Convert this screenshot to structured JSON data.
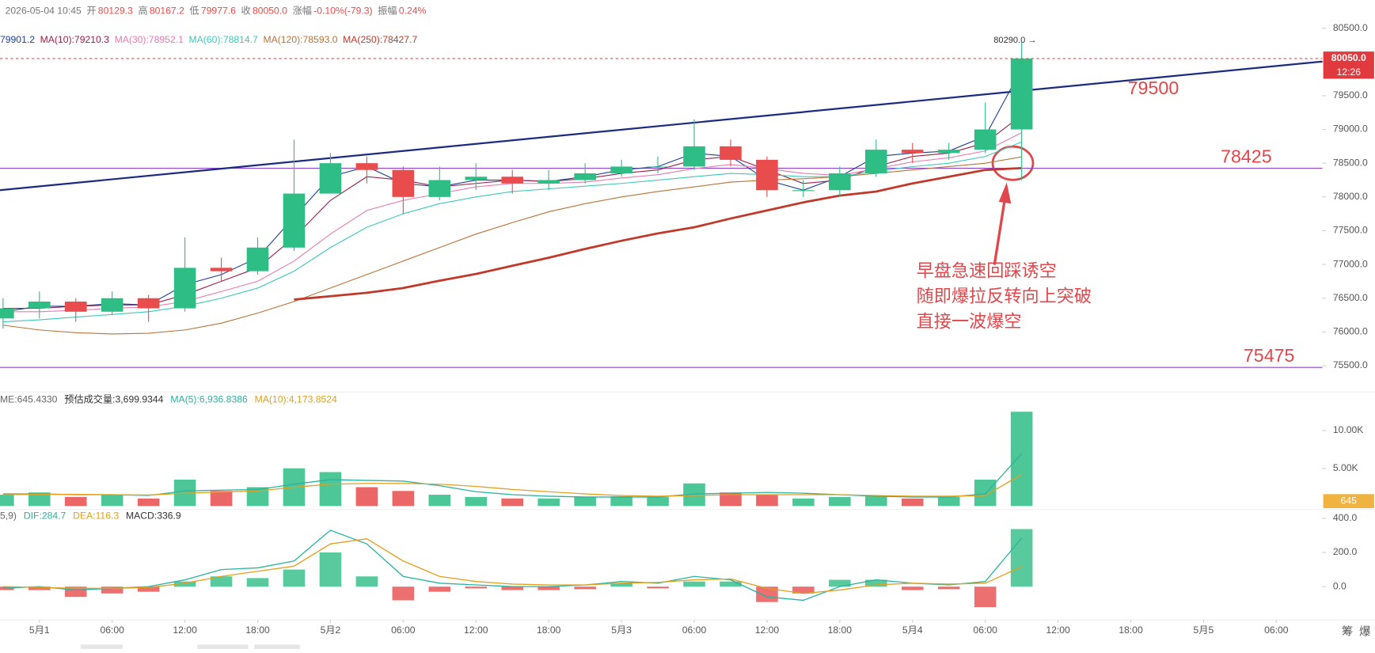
{
  "chart_data": [
    {
      "type": "candlestick",
      "info": {
        "time": "2026-05-04 10:45",
        "items": [
          {
            "label": "开",
            "value": "80129.3"
          },
          {
            "label": "高",
            "value": "80167.2"
          },
          {
            "label": "低",
            "value": "79977.6"
          },
          {
            "label": "收",
            "value": "80050.0"
          },
          {
            "label": "涨幅",
            "value": "-0.10%(-79.3)"
          },
          {
            "label": "振幅",
            "value": "0.24%"
          }
        ]
      },
      "x": [
        -3,
        0,
        3,
        6,
        9,
        12,
        15,
        18,
        21,
        24,
        27,
        30,
        33,
        36,
        39,
        42,
        45,
        48,
        51,
        54,
        57,
        60,
        63,
        66,
        69,
        72,
        75,
        78,
        81
      ],
      "open": [
        76200,
        76350,
        76450,
        76300,
        76500,
        76350,
        76950,
        76900,
        77250,
        78050,
        78500,
        78400,
        78000,
        78250,
        78300,
        78200,
        78250,
        78350,
        78450,
        78450,
        78750,
        78550,
        78100,
        78100,
        78350,
        78700,
        78650,
        78700,
        79000
      ],
      "high": [
        76500,
        76600,
        76500,
        76600,
        76550,
        77400,
        77100,
        77400,
        78850,
        78650,
        78600,
        78450,
        78450,
        78500,
        78400,
        78400,
        78500,
        78550,
        78600,
        79150,
        78850,
        78600,
        78250,
        78450,
        78850,
        78800,
        78800,
        79400,
        80290
      ],
      "low": [
        76050,
        76200,
        76150,
        76250,
        76150,
        76300,
        76750,
        76850,
        77200,
        78050,
        78200,
        77750,
        77950,
        78100,
        78050,
        78100,
        78200,
        78300,
        78350,
        78400,
        78450,
        78000,
        78000,
        78000,
        78300,
        78500,
        78550,
        78650,
        78250
      ],
      "close": [
        76350,
        76450,
        76300,
        76500,
        76350,
        76950,
        76900,
        77250,
        78050,
        78500,
        78400,
        78000,
        78250,
        78300,
        78200,
        78250,
        78350,
        78450,
        78450,
        78750,
        78550,
        78100,
        78100,
        78350,
        78700,
        78650,
        78700,
        79000,
        80050
      ],
      "up_color": "#2ebd85",
      "down_color": "#e84c4c",
      "ma": [
        {
          "label": "79901.2",
          "color": "#1f3f94",
          "width": 1,
          "values": [
            76300,
            76380,
            76380,
            76420,
            76400,
            76700,
            76850,
            77100,
            77700,
            78300,
            78450,
            78200,
            78150,
            78250,
            78250,
            78230,
            78300,
            78400,
            78450,
            78650,
            78600,
            78250,
            78100,
            78300,
            78600,
            78650,
            78680,
            78900,
            79901.2
          ]
        },
        {
          "label": "MA(10):79210.3",
          "color": "#9c1f4a",
          "width": 1,
          "values": [
            76350,
            76350,
            76380,
            76400,
            76400,
            76550,
            76750,
            76950,
            77400,
            77950,
            78300,
            78250,
            78150,
            78200,
            78250,
            78230,
            78270,
            78350,
            78400,
            78550,
            78600,
            78400,
            78200,
            78250,
            78450,
            78600,
            78650,
            78800,
            79210.3
          ]
        },
        {
          "label": "MA(30):78952.1",
          "color": "#e87ab0",
          "width": 1,
          "values": [
            76300,
            76300,
            76320,
            76350,
            76370,
            76450,
            76600,
            76750,
            77050,
            77450,
            77800,
            77950,
            78050,
            78150,
            78200,
            78200,
            78220,
            78280,
            78330,
            78420,
            78480,
            78420,
            78350,
            78320,
            78420,
            78520,
            78580,
            78680,
            78952.1
          ]
        },
        {
          "label": "MA(60):78814.7",
          "color": "#3ec7b8",
          "width": 1,
          "values": [
            76150,
            76180,
            76220,
            76260,
            76300,
            76380,
            76500,
            76650,
            76900,
            77250,
            77550,
            77750,
            77900,
            78000,
            78080,
            78120,
            78160,
            78200,
            78250,
            78300,
            78350,
            78330,
            78300,
            78300,
            78380,
            78450,
            78500,
            78600,
            78814.7
          ]
        },
        {
          "label": "MA(120):78593.0",
          "color": "#b8733a",
          "width": 1,
          "values": [
            76100,
            76030,
            75990,
            75970,
            75980,
            76030,
            76130,
            76280,
            76450,
            76650,
            76850,
            77050,
            77250,
            77450,
            77620,
            77780,
            77900,
            78000,
            78080,
            78150,
            78220,
            78250,
            78270,
            78300,
            78350,
            78400,
            78450,
            78500,
            78593.0
          ]
        },
        {
          "label": "MA(250):78427.7",
          "color": "#c0392b",
          "width": 2.5,
          "values": [
            null,
            null,
            null,
            null,
            null,
            null,
            null,
            null,
            76480,
            76530,
            76580,
            76650,
            76760,
            76860,
            76980,
            77100,
            77230,
            77350,
            77460,
            77550,
            77680,
            77800,
            77920,
            78020,
            78080,
            78200,
            78300,
            78400,
            78427.7
          ]
        }
      ],
      "xlim": [
        -3.25,
        105.8
      ],
      "xticks": [
        {
          "value": 0,
          "label": "5月1"
        },
        {
          "value": 6,
          "label": "06:00"
        },
        {
          "value": 12,
          "label": "12:00"
        },
        {
          "value": 18,
          "label": "18:00"
        },
        {
          "value": 24,
          "label": "5月2"
        },
        {
          "value": 30,
          "label": "06:00"
        },
        {
          "value": 36,
          "label": "12:00"
        },
        {
          "value": 42,
          "label": "18:00"
        },
        {
          "value": 48,
          "label": "5月3"
        },
        {
          "value": 54,
          "label": "06:00"
        },
        {
          "value": 60,
          "label": "12:00"
        },
        {
          "value": 66,
          "label": "18:00"
        },
        {
          "value": 72,
          "label": "5月4"
        },
        {
          "value": 78,
          "label": "06:00"
        },
        {
          "value": 84,
          "label": "12:00"
        },
        {
          "value": 90,
          "label": "18:00"
        },
        {
          "value": 96,
          "label": "5月5"
        },
        {
          "value": 102,
          "label": "06:00"
        }
      ],
      "ylim": [
        75136,
        80916
      ],
      "yticks": [
        {
          "value": 75500,
          "label": "75500.0"
        },
        {
          "value": 76000,
          "label": "76000.0"
        },
        {
          "value": 76500,
          "label": "76500.0"
        },
        {
          "value": 77000,
          "label": "77000.0"
        },
        {
          "value": 77500,
          "label": "77500.0"
        },
        {
          "value": 78000,
          "label": "78000.0"
        },
        {
          "value": 78500,
          "label": "78500.0"
        },
        {
          "value": 79000,
          "label": "79000.0"
        },
        {
          "value": 79500,
          "label": "79500.0"
        },
        {
          "value": 80000,
          "label": "80000.0"
        },
        {
          "value": 80500,
          "label": "80500.0"
        }
      ],
      "current_price": {
        "value": 80050,
        "label": "80050.0"
      },
      "countdown": "12:26",
      "high_marker": {
        "value": 80290,
        "label": "80290.0 →"
      },
      "levels": [
        78425,
        75475
      ],
      "trendline": {
        "label": 79500,
        "x": [
          -3.25,
          105.8
        ],
        "y": [
          78100,
          80006
        ]
      },
      "annotation": [
        "早盘急速回踩诱空",
        "随即爆拉反转向上突破",
        "直接一波爆空"
      ],
      "corner_icons": [
        "筹",
        "爆"
      ]
    },
    {
      "type": "bar",
      "legend": [
        {
          "label": "ME:645.4330",
          "color": "#666"
        },
        {
          "label": "预估成交量:3,699.9344",
          "color": "#333"
        },
        {
          "label": "MA(5):6,936.8386",
          "color": "#2bb3a0"
        },
        {
          "label": "MA(10):4,173.8524",
          "color": "#e0a020"
        }
      ],
      "values": [
        1500,
        1800,
        1200,
        1500,
        1000,
        3500,
        2000,
        2500,
        5000,
        4500,
        2500,
        2000,
        1500,
        1200,
        1000,
        1000,
        1200,
        1300,
        1200,
        3000,
        1800,
        1500,
        1000,
        1200,
        1300,
        1000,
        1200,
        3500,
        12500
      ],
      "series": [
        {
          "name": "MA(5)",
          "color": "#2bb3a0",
          "values": [
            1600,
            1600,
            1500,
            1500,
            1400,
            2000,
            2100,
            2200,
            2900,
            3500,
            3400,
            3300,
            2700,
            1900,
            1500,
            1300,
            1200,
            1200,
            1200,
            1600,
            1700,
            1800,
            1700,
            1500,
            1300,
            1200,
            1200,
            1600,
            6936.8386
          ]
        },
        {
          "name": "MA(10)",
          "color": "#e0a020",
          "values": [
            1500,
            1550,
            1550,
            1500,
            1450,
            1700,
            1850,
            2000,
            2500,
            2900,
            3000,
            3000,
            2900,
            2600,
            2200,
            1900,
            1600,
            1400,
            1300,
            1400,
            1500,
            1500,
            1500,
            1500,
            1400,
            1300,
            1300,
            1400,
            4173.8524
          ]
        }
      ],
      "ylim": [
        0,
        14767
      ],
      "yticks": [
        {
          "value": 5000,
          "label": "5.00K"
        },
        {
          "value": 10000,
          "label": "10.00K"
        }
      ],
      "current_tag": {
        "value": 645.433,
        "label": "645"
      }
    },
    {
      "type": "macd",
      "legend": [
        {
          "label": "5,9)",
          "color": "#666"
        },
        {
          "label": "DIF:284.7",
          "color": "#2bb3a0"
        },
        {
          "label": "DEA:116.3",
          "color": "#e0a020"
        },
        {
          "label": "MACD:336.9",
          "color": "#333"
        }
      ],
      "values": [
        -20,
        -20,
        -60,
        -40,
        -30,
        30,
        60,
        50,
        100,
        200,
        60,
        -80,
        -30,
        -10,
        -20,
        -20,
        -15,
        20,
        -10,
        30,
        30,
        -90,
        -40,
        40,
        40,
        -20,
        -15,
        -120,
        336.9
      ],
      "series": [
        {
          "name": "DIF",
          "color": "#2bb3a0",
          "values": [
            -10,
            0,
            -20,
            -10,
            0,
            40,
            100,
            110,
            150,
            330,
            250,
            60,
            20,
            10,
            0,
            0,
            10,
            30,
            20,
            60,
            40,
            -60,
            -80,
            0,
            40,
            20,
            10,
            30,
            284.7
          ]
        },
        {
          "name": "DEA",
          "color": "#e0a020",
          "values": [
            0,
            -5,
            -10,
            -10,
            -5,
            20,
            60,
            90,
            120,
            250,
            280,
            150,
            60,
            30,
            15,
            10,
            10,
            20,
            25,
            40,
            45,
            -10,
            -40,
            -20,
            10,
            20,
            15,
            20,
            116.3
          ]
        }
      ],
      "ylim": [
        -185,
        441
      ],
      "yticks": [
        {
          "value": 0,
          "label": "0.0"
        },
        {
          "value": 200,
          "label": "200.0"
        },
        {
          "value": 400,
          "label": "400.0"
        }
      ]
    }
  ]
}
